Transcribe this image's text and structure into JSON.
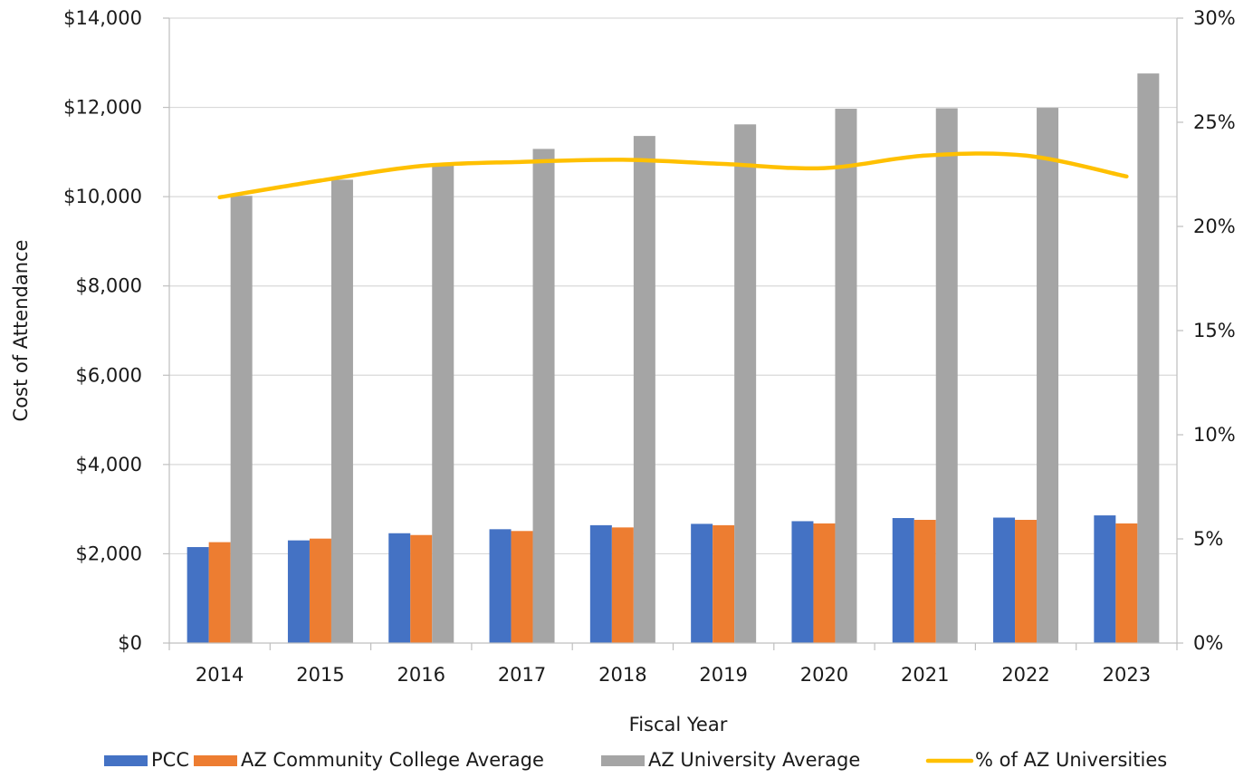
{
  "chart_data": {
    "type": "bar",
    "categories": [
      "2014",
      "2015",
      "2016",
      "2017",
      "2018",
      "2019",
      "2020",
      "2021",
      "2022",
      "2023"
    ],
    "series": [
      {
        "name": "PCC",
        "type": "bar",
        "axis": "left",
        "color": "#4472C4",
        "values": [
          2150,
          2300,
          2460,
          2550,
          2640,
          2670,
          2730,
          2800,
          2810,
          2860
        ]
      },
      {
        "name": "AZ Community College Average",
        "type": "bar",
        "axis": "left",
        "color": "#ED7D31",
        "values": [
          2260,
          2340,
          2420,
          2510,
          2590,
          2640,
          2680,
          2760,
          2760,
          2680
        ]
      },
      {
        "name": "AZ University Average",
        "type": "bar",
        "axis": "left",
        "color": "#A5A5A5",
        "values": [
          10020,
          10380,
          10720,
          11070,
          11360,
          11620,
          11970,
          11980,
          11990,
          12760
        ]
      },
      {
        "name": "% of AZ Universities",
        "type": "line",
        "axis": "right",
        "color": "#FFC000",
        "values": [
          21.4,
          22.2,
          22.9,
          23.1,
          23.2,
          23.0,
          22.8,
          23.4,
          23.4,
          22.4
        ]
      }
    ],
    "xlabel": "Fiscal Year",
    "ylabel": "Cost of Attendance",
    "ylim": [
      0,
      14000
    ],
    "y2lim": [
      0,
      30
    ],
    "yticks": [
      "$0",
      "$2,000",
      "$4,000",
      "$6,000",
      "$8,000",
      "$10,000",
      "$12,000",
      "$14,000"
    ],
    "y2ticks": [
      "0%",
      "5%",
      "10%",
      "15%",
      "20%",
      "25%",
      "30%"
    ],
    "grid": true,
    "legend_position": "bottom"
  }
}
